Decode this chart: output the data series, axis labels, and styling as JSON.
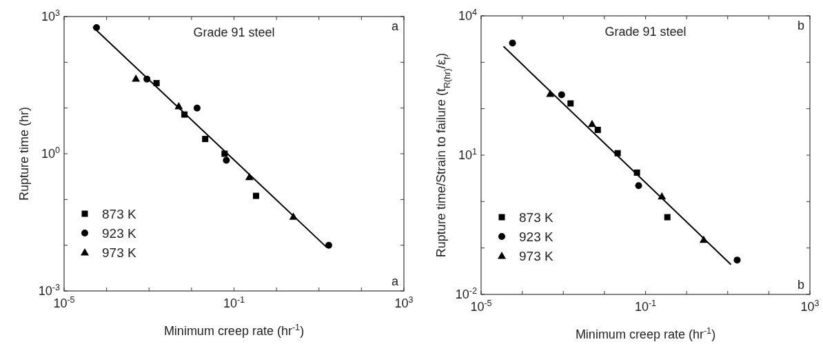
{
  "chart_data": [
    {
      "type": "scatter",
      "title": "Grade 91 steel",
      "xlabel": "Minimum creep rate (hr$^{-1}$)",
      "ylabel": "Rupture time (hr)",
      "log": "xy",
      "grid": false,
      "legend": "bottom left",
      "xlim": [
        1e-05,
        1000
      ],
      "xticks": [
        {
          "value": 1e-05,
          "label": "10$^{-5}$"
        },
        {
          "value": 0.0001,
          "label": null
        },
        {
          "value": 0.001,
          "label": null
        },
        {
          "value": 0.01,
          "label": null
        },
        {
          "value": 0.1,
          "label": "10$^{-1}$"
        },
        {
          "value": 1,
          "label": null
        },
        {
          "value": 10,
          "label": null
        },
        {
          "value": 100,
          "label": null
        },
        {
          "value": 1000,
          "label": "10$^{3}$"
        }
      ],
      "ylim": [
        0.001,
        1000
      ],
      "yticks": [
        {
          "value": 0.001,
          "label": "10$^{-3}$"
        },
        {
          "value": 0.01,
          "label": null
        },
        {
          "value": 0.1,
          "label": null
        },
        {
          "value": 1,
          "label": "10$^{0}$"
        },
        {
          "value": 10,
          "label": null
        },
        {
          "value": 100,
          "label": null
        },
        {
          "value": 1000,
          "label": "10$^{3}$"
        }
      ],
      "annotations": [
        "a",
        "a"
      ],
      "series": [
        {
          "name": "873 K",
          "color": "#000000",
          "marker": "square",
          "x": [
            0.0015,
            0.0068,
            0.021,
            0.06,
            0.33
          ],
          "values": [
            35,
            7.2,
            2.1,
            1.0,
            0.12
          ]
        },
        {
          "name": "923 K",
          "color": "#000000",
          "marker": "circle",
          "x": [
            5.8e-05,
            0.00089,
            0.0135,
            0.066,
            17
          ],
          "values": [
            575,
            43,
            10,
            0.72,
            0.01
          ]
        },
        {
          "name": "973 K",
          "color": "#000000",
          "marker": "triangle",
          "x": [
            0.00049,
            0.005,
            0.23,
            2.5
          ],
          "values": [
            44,
            11,
            0.31,
            0.042
          ]
        },
        {
          "type": "line",
          "color": "#000000",
          "marker": "none",
          "line_style": "solid",
          "x": [
            4.8e-05,
            15
          ],
          "values": [
            590,
            0.0091
          ]
        }
      ]
    },
    {
      "type": "scatter",
      "title": "Grade 91 steel",
      "xlabel": "Minimum creep rate (hr$^{-1}$)",
      "ylabel": "Rupture time/Strain to failure (t$_{R(hr)}$/ε$_{f}$)",
      "log": "xy",
      "grid": false,
      "legend": "bottom left",
      "xlim": [
        1e-05,
        1000
      ],
      "xticks": [
        {
          "value": 1e-05,
          "label": "10$^{-5}$"
        },
        {
          "value": 0.0001,
          "label": null
        },
        {
          "value": 0.001,
          "label": null
        },
        {
          "value": 0.01,
          "label": null
        },
        {
          "value": 0.1,
          "label": "10$^{-1}$"
        },
        {
          "value": 1,
          "label": null
        },
        {
          "value": 10,
          "label": null
        },
        {
          "value": 100,
          "label": null
        },
        {
          "value": 1000,
          "label": "10$^{3}$"
        }
      ],
      "ylim": [
        0.01,
        10000
      ],
      "yticks": [
        {
          "value": 0.01,
          "label": "10$^{-2}$"
        },
        {
          "value": 0.1,
          "label": null
        },
        {
          "value": 1,
          "label": null
        },
        {
          "value": 10,
          "label": "10$^{1}$"
        },
        {
          "value": 100,
          "label": null
        },
        {
          "value": 1000,
          "label": null
        },
        {
          "value": 10000,
          "label": "10$^{4}$"
        }
      ],
      "annotations": [
        "b",
        "b"
      ],
      "series": [
        {
          "name": "873 K",
          "color": "#000000",
          "marker": "square",
          "x": [
            0.0015,
            0.0069,
            0.021,
            0.062,
            0.34
          ],
          "values": [
            130,
            35,
            11,
            4.2,
            0.46
          ]
        },
        {
          "name": "923 K",
          "color": "#000000",
          "marker": "circle",
          "x": [
            5.8e-05,
            0.00091,
            0.068,
            17
          ],
          "values": [
            2600,
            200,
            2.2,
            0.055
          ]
        },
        {
          "name": "973 K",
          "color": "#000000",
          "marker": "triangle",
          "x": [
            0.00048,
            0.005,
            0.25,
            2.6
          ],
          "values": [
            210,
            47,
            1.3,
            0.15
          ]
        },
        {
          "type": "line",
          "color": "#000000",
          "marker": "none",
          "line_style": "solid",
          "x": [
            3.5e-05,
            12
          ],
          "values": [
            2200,
            0.044
          ]
        }
      ]
    }
  ]
}
